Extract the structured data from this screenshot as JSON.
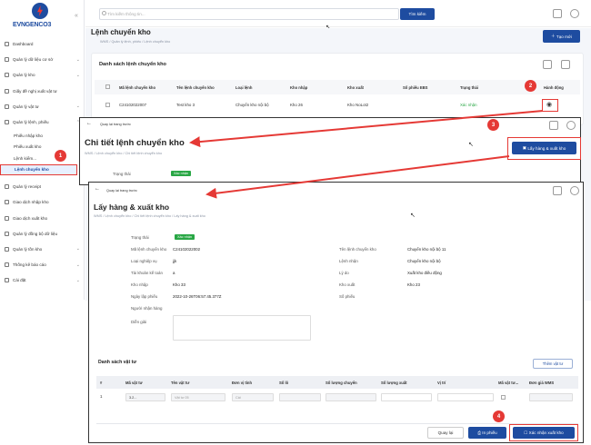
{
  "logo": {
    "text": "EVNGENCO3"
  },
  "sidebar": {
    "items": [
      {
        "label": "Dashboard"
      },
      {
        "label": "Quản lý dữ liệu cơ sở"
      },
      {
        "label": "Quản lý kho"
      },
      {
        "label": "Giấy đề nghị xuất vật tư"
      },
      {
        "label": "Quản lý vật tư"
      },
      {
        "label": "Quản lý lệnh, phiếu"
      }
    ],
    "subitems": [
      {
        "label": "Phiếu nhập kho"
      },
      {
        "label": "Phiếu xuất kho"
      },
      {
        "label": "Lệnh kiểm..."
      },
      {
        "label": "Lệnh chuyển kho"
      }
    ],
    "items2": [
      {
        "label": "Quản lý receipt"
      },
      {
        "label": "Giao dịch nhập kho"
      },
      {
        "label": "Giao dịch xuất kho"
      },
      {
        "label": "Quản lý đồng bộ dữ liệu"
      },
      {
        "label": "Quản lý tồn kho"
      },
      {
        "label": "Thống kê báo cáo"
      },
      {
        "label": "Cài đặt"
      }
    ]
  },
  "header": {
    "search_placeholder": "Tìm kiếm thông tin...",
    "search_button": "Tìm kiếm"
  },
  "page1": {
    "title": "Lệnh chuyển kho",
    "crumbs": "WMS  /  Quản lý lệnh, phiếu  /  Lệnh chuyển kho",
    "new_button": "Tạo mới",
    "list_title": "Danh sách lệnh chuyển kho",
    "columns": [
      "Mã lệnh chuyển kho",
      "Tên lệnh chuyển kho",
      "Loại lệnh",
      "Kho nhập",
      "Kho xuất",
      "Số phiếu EBS",
      "Trạng thái",
      "Hành động"
    ],
    "row": [
      "C24102022007",
      "Test kho 3",
      "Chuyển kho nội bộ",
      "Kho 26",
      "Kho NoLot2",
      "",
      "Xác nhận"
    ]
  },
  "page2": {
    "back": "Quay lại trang trước",
    "title": "Chi tiết lệnh chuyển kho",
    "crumbs": "WMS  /  Lệnh chuyển kho  /  Chi tiết lệnh chuyển kho",
    "action_button": "Lấy hàng & xuất kho",
    "status_label": "Trạng thái",
    "status": "Xác nhận"
  },
  "page3": {
    "back": "Quay lại trang trước",
    "title": "Lấy hàng & xuất kho",
    "crumbs": "WMS  /  Lệnh chuyển kho  /  Chi tiết lệnh chuyển kho  /  Lấy hàng & xuất kho",
    "status_label": "Trạng thái",
    "status": "Xác nhận",
    "left": [
      [
        "Mã lệnh chuyển kho",
        "C24102022002"
      ],
      [
        "Loại nghiệp vụ",
        "jjk"
      ],
      [
        "Tài khoản kế toán",
        "a"
      ],
      [
        "Kho nhập",
        "Kho 33"
      ],
      [
        "Ngày lập phiếu",
        "2022-10-26T06:57:45.377Z"
      ],
      [
        "Người nhận hàng",
        ""
      ],
      [
        "Diễn giải",
        ""
      ]
    ],
    "right": [
      [
        "Tên lệnh chuyển kho",
        "Chuyển kho nội bộ 11"
      ],
      [
        "Lệnh nhận",
        "Chuyển kho nội bộ"
      ],
      [
        "Lý do",
        "Xuất kho điều động"
      ],
      [
        "Kho xuất",
        "Kho 23"
      ],
      [
        "Số phiếu",
        ""
      ]
    ],
    "materials_title": "Danh sách vật tư",
    "add_button": "Thêm vật tư",
    "columns": [
      "#",
      "Mã vật tư",
      "Tên vật tư",
      "Đơn vị tính",
      "Số lô",
      "Số lượng chuyển",
      "Số lượng xuất",
      "Vị trí",
      "Mã vật tư...",
      "Đơn giá WMS"
    ],
    "row": {
      "idx": "1",
      "code": "3.2...",
      "name": "Vật tư 05",
      "unit": "Cái"
    },
    "back_button": "Quay lại",
    "print_button": "In phiếu",
    "confirm_button": "Xác nhận xuất kho"
  },
  "markers": [
    "1",
    "2",
    "3",
    "4"
  ],
  "colors": {
    "brand": "#1e4ca0",
    "annotation": "#e53935",
    "success": "#29a745"
  }
}
